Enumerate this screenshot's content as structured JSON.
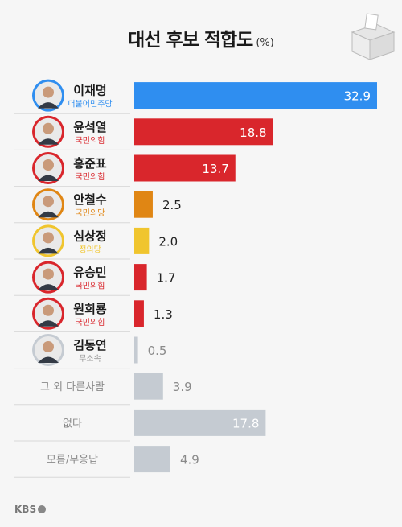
{
  "title": "대선 후보 적합도",
  "unit": "(%)",
  "logo": "KBS",
  "colors": {
    "blue": "#2f8ef0",
    "red": "#d9262c",
    "orange": "#e08614",
    "yellow": "#f0c52e",
    "gray": "#c5cbd2",
    "grayLabel": "#999999"
  },
  "chart_data": {
    "type": "bar",
    "orientation": "horizontal",
    "xlim": [
      0,
      32.9
    ],
    "rows": [
      {
        "name": "이재명",
        "party": "더불어민주당",
        "value": 32.9,
        "color": "blue",
        "photo": "candidate-photo",
        "value_inside": true
      },
      {
        "name": "윤석열",
        "party": "국민의힘",
        "value": 18.8,
        "color": "red",
        "photo": "candidate-photo",
        "value_inside": true
      },
      {
        "name": "홍준표",
        "party": "국민의힘",
        "value": 13.7,
        "color": "red",
        "photo": "candidate-photo",
        "value_inside": true
      },
      {
        "name": "안철수",
        "party": "국민의당",
        "value": 2.5,
        "color": "orange",
        "photo": "candidate-photo",
        "value_inside": false
      },
      {
        "name": "심상정",
        "party": "정의당",
        "value": 2.0,
        "color": "yellow",
        "photo": "candidate-photo",
        "value_inside": false
      },
      {
        "name": "유승민",
        "party": "국민의힘",
        "value": 1.7,
        "color": "red",
        "photo": "candidate-photo",
        "value_inside": false
      },
      {
        "name": "원희룡",
        "party": "국민의힘",
        "value": 1.3,
        "color": "red",
        "photo": "candidate-photo",
        "value_inside": false
      },
      {
        "name": "김동연",
        "party": "무소속",
        "value": 0.5,
        "color": "gray",
        "photo": "candidate-photo",
        "value_inside": false
      },
      {
        "name": "그 외 다른사람",
        "party": "",
        "value": 3.9,
        "color": "gray",
        "photo": "",
        "value_inside": false
      },
      {
        "name": "없다",
        "party": "",
        "value": 17.8,
        "color": "gray",
        "photo": "",
        "value_inside": true
      },
      {
        "name": "모름/무응답",
        "party": "",
        "value": 4.9,
        "color": "gray",
        "photo": "",
        "value_inside": false
      }
    ]
  }
}
